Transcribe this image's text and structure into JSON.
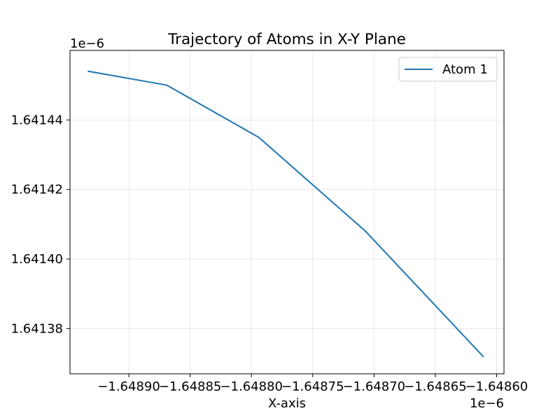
{
  "chart_data": {
    "type": "line",
    "title": "Trajectory of Atoms in X-Y Plane",
    "xlabel": "X-axis",
    "ylabel": "",
    "x_offset_label": "1e−6",
    "y_offset_label": "1e−6",
    "xlim": [
      -1.648948,
      -1.648594
    ],
    "ylim": [
      1.641367,
      1.64146
    ],
    "x_ticks": [
      -1.6489,
      -1.64885,
      -1.6488,
      -1.64875,
      -1.6487,
      -1.64865,
      -1.6486
    ],
    "x_tick_labels": [
      "−1.64890",
      "−1.64885",
      "−1.64880",
      "−1.64875",
      "−1.64870",
      "−1.64865",
      "−1.64860"
    ],
    "y_ticks": [
      1.64138,
      1.6414,
      1.64142,
      1.64144
    ],
    "y_tick_labels": [
      "1.64138",
      "1.64140",
      "1.64142",
      "1.64144"
    ],
    "grid": true,
    "legend_position": "top-right",
    "series": [
      {
        "name": "Atom 1",
        "color": "#1f77b4",
        "x": [
          -1.648933,
          -1.648869,
          -1.648794,
          -1.648707,
          -1.648611
        ],
        "y": [
          1.641454,
          1.64145,
          1.641435,
          1.641408,
          1.641372
        ]
      }
    ]
  }
}
